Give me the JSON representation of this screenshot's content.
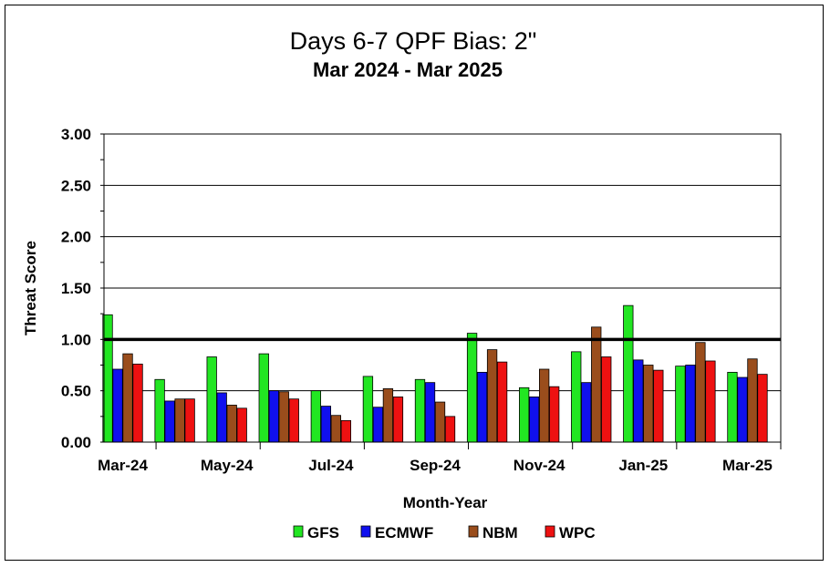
{
  "chart_data": {
    "type": "bar",
    "title": "Days 6-7 QPF Bias:  2\"",
    "subtitle": "Mar 2024 - Mar 2025",
    "xlabel": "Month-Year",
    "ylabel": "Threat Score",
    "ylim": [
      0,
      3
    ],
    "yticks": [
      "0.00",
      "0.50",
      "1.00",
      "1.50",
      "2.00",
      "2.50",
      "3.00"
    ],
    "categories": [
      "Mar-24",
      "Apr-24",
      "May-24",
      "Jun-24",
      "Jul-24",
      "Aug-24",
      "Sep-24",
      "Oct-24",
      "Nov-24",
      "Dec-24",
      "Jan-25",
      "Feb-25",
      "Mar-25"
    ],
    "category_labels_shown": [
      "Mar-24",
      "",
      "May-24",
      "",
      "Jul-24",
      "",
      "Sep-24",
      "",
      "Nov-24",
      "",
      "Jan-25",
      "",
      "Mar-25"
    ],
    "series": [
      {
        "name": "GFS",
        "color": "#22e622",
        "values": [
          1.24,
          0.61,
          0.83,
          0.86,
          0.5,
          0.64,
          0.61,
          1.06,
          0.53,
          0.88,
          1.33,
          0.74,
          0.68
        ]
      },
      {
        "name": "ECMWF",
        "color": "#1010ee",
        "values": [
          0.71,
          0.4,
          0.48,
          0.5,
          0.35,
          0.34,
          0.58,
          0.68,
          0.44,
          0.58,
          0.8,
          0.75,
          0.63
        ]
      },
      {
        "name": "NBM",
        "color": "#9a4d1c",
        "values": [
          0.86,
          0.42,
          0.36,
          0.49,
          0.26,
          0.52,
          0.39,
          0.9,
          0.71,
          1.12,
          0.75,
          0.97,
          0.81
        ]
      },
      {
        "name": "WPC",
        "color": "#ee1111",
        "values": [
          0.76,
          0.42,
          0.33,
          0.42,
          0.21,
          0.44,
          0.25,
          0.78,
          0.54,
          0.83,
          0.7,
          0.79,
          0.66
        ]
      }
    ],
    "reference_line": 1.0,
    "grid": true,
    "legend_position": "bottom"
  }
}
